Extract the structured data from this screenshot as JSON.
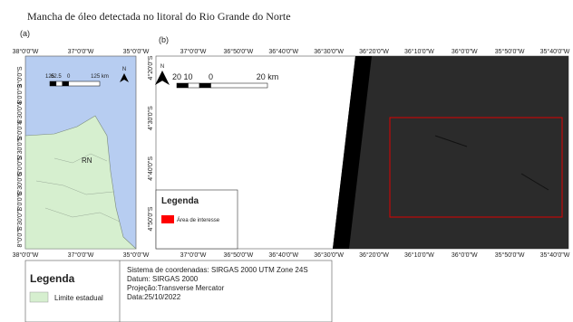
{
  "header": {
    "title": "Mancha de óleo detectada no litoral do Rio Grande do Norte"
  },
  "panel_a": {
    "label": "(a)",
    "lon_labels": [
      "38°0'0\"W",
      "37°0'0\"W",
      "35°0'0\"W"
    ],
    "lat_labels": [
      "3°0'0\"S",
      "4°0'0\"S",
      "4°30'0\"S",
      "5°0'0\"S",
      "5°30'0\"S",
      "6°0'0\"S",
      "6°30'0\"S",
      "7°0'0\"S",
      "7°30'0\"S",
      "8°0'0\"S"
    ],
    "scale_labels": [
      "125",
      "62.5",
      "0",
      "125 km"
    ],
    "north": "N",
    "place": "RN"
  },
  "panel_b": {
    "label": "(b)",
    "lon_labels": [
      "37°0'0\"W",
      "36°50'0\"W",
      "36°40'0\"W",
      "36°30'0\"W",
      "36°20'0\"W",
      "36°10'0\"W",
      "36°0'0\"W",
      "35°50'0\"W",
      "35°40'0\"W"
    ],
    "lat_labels": [
      "4°20'0\"S",
      "4°30'0\"S",
      "4°40'0\"S",
      "4°50'0\"S"
    ],
    "scale_labels": [
      "20",
      "10",
      "0",
      "20 km"
    ],
    "north": "N",
    "legend": {
      "title": "Legenda",
      "item": "Área de interesse"
    }
  },
  "footer": {
    "legend_title": "Legenda",
    "legend_item": "Limite estadual",
    "info": [
      "Sistema de coordenadas: SIRGAS 2000 UTM Zone 24S",
      "Datum: SIRGAS 2000",
      "Projeção:Transverse Mercator",
      "Data:25/10/2022"
    ]
  }
}
